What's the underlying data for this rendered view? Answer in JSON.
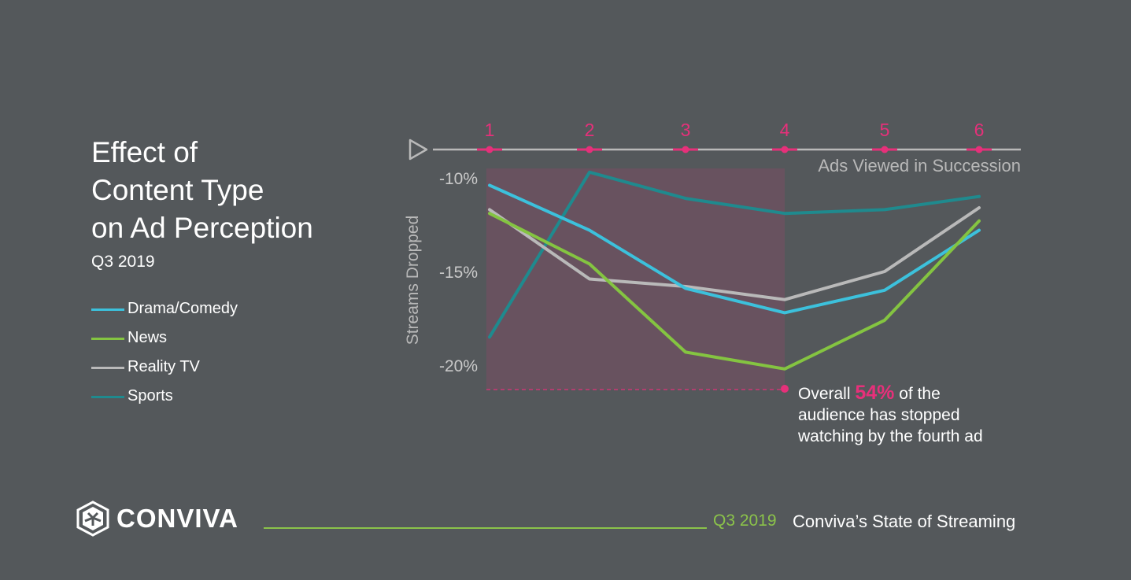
{
  "title_lines": [
    "Effect of",
    "Content Type",
    "on Ad Perception"
  ],
  "subtitle": "Q3 2019",
  "legend": [
    {
      "label": "Drama/Comedy",
      "color": "#3cc1dc"
    },
    {
      "label": "News",
      "color": "#84c441"
    },
    {
      "label": "Reality TV",
      "color": "#b9b9b9"
    },
    {
      "label": "Sports",
      "color": "#1f8a8e"
    }
  ],
  "chart_data": {
    "type": "line",
    "title": "Effect of Content Type on Ad Perception",
    "xlabel": "Ads Viewed in Succession",
    "ylabel": "Streams Dropped",
    "x": [
      "1",
      "2",
      "3",
      "4",
      "5",
      "6"
    ],
    "ylim": [
      -21.3,
      -9.5
    ],
    "yticks": [
      -10,
      -15,
      -20
    ],
    "ytick_labels": [
      "-10%",
      "-15%",
      "-20%"
    ],
    "series": [
      {
        "name": "Drama/Comedy",
        "color": "#3cc1dc",
        "values": [
          -10.4,
          -12.8,
          -15.9,
          -17.2,
          -16.0,
          -12.8
        ]
      },
      {
        "name": "News",
        "color": "#84c441",
        "values": [
          -11.9,
          -14.6,
          -19.3,
          -20.2,
          -17.6,
          -12.3
        ]
      },
      {
        "name": "Reality TV",
        "color": "#b9b9b9",
        "values": [
          -11.7,
          -15.4,
          -15.8,
          -16.5,
          -15.0,
          -11.6
        ]
      },
      {
        "name": "Sports",
        "color": "#1f8a8e",
        "values": [
          -18.5,
          -9.7,
          -11.1,
          -11.9,
          -11.7,
          -11.0
        ]
      }
    ],
    "highlight_range": [
      "1",
      "4"
    ],
    "accent_color": "#e6307a",
    "grid": false
  },
  "annotation": {
    "prefix": "Overall ",
    "percent": "54%",
    "suffix": " of the",
    "line2": "audience has stopped",
    "line3": "watching by the fourth ad"
  },
  "logo_text": "CONVIVA",
  "footer": {
    "period": "Q3 2019",
    "source": "Conviva’s State of Streaming"
  }
}
